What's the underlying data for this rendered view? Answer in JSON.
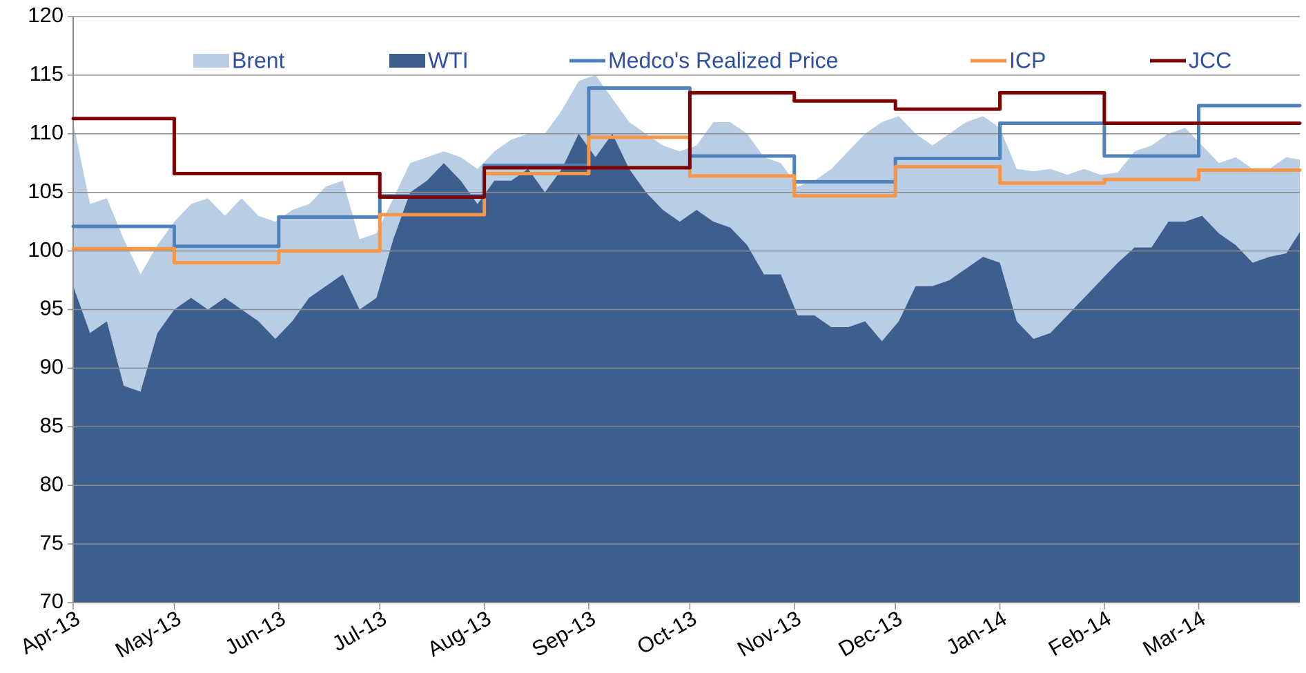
{
  "chart_data": {
    "type": "line",
    "xlim": [
      0,
      364
    ],
    "ylim": [
      70,
      120
    ],
    "yticks": [
      70,
      75,
      80,
      85,
      90,
      95,
      100,
      105,
      110,
      115,
      120
    ],
    "xticks": [
      {
        "value": 0,
        "label": "Apr-13"
      },
      {
        "value": 30,
        "label": "May-13"
      },
      {
        "value": 61,
        "label": "Jun-13"
      },
      {
        "value": 91,
        "label": "Jul-13"
      },
      {
        "value": 122,
        "label": "Aug-13"
      },
      {
        "value": 153,
        "label": "Sep-13"
      },
      {
        "value": 183,
        "label": "Oct-13"
      },
      {
        "value": 214,
        "label": "Nov-13"
      },
      {
        "value": 244,
        "label": "Dec-13"
      },
      {
        "value": 275,
        "label": "Jan-14"
      },
      {
        "value": 306,
        "label": "Feb-14"
      },
      {
        "value": 334,
        "label": "Mar-14"
      }
    ],
    "grid": true,
    "legend": "top",
    "series": [
      {
        "name": "Brent",
        "style": "area",
        "color": "#b9cde5",
        "x": [
          0,
          5,
          10,
          15,
          20,
          25,
          30,
          35,
          40,
          45,
          50,
          55,
          60,
          65,
          70,
          75,
          80,
          85,
          90,
          95,
          100,
          105,
          110,
          115,
          120,
          125,
          130,
          135,
          140,
          145,
          150,
          155,
          160,
          165,
          170,
          175,
          180,
          185,
          190,
          195,
          200,
          205,
          210,
          215,
          220,
          225,
          230,
          235,
          240,
          245,
          250,
          255,
          260,
          265,
          270,
          275,
          280,
          285,
          290,
          295,
          300,
          305,
          310,
          315,
          320,
          325,
          330,
          335,
          340,
          345,
          350,
          355,
          360,
          364
        ],
        "values": [
          111,
          104,
          104.5,
          101,
          98,
          100.5,
          102.5,
          104,
          104.5,
          103,
          104.5,
          103,
          102.5,
          103.5,
          104,
          105.5,
          106,
          101,
          101.5,
          104.5,
          107.5,
          108,
          108.5,
          108,
          107,
          108.5,
          109.5,
          110,
          110,
          112,
          114.5,
          115,
          113,
          111,
          110,
          109,
          108.5,
          109,
          111,
          111,
          110,
          108,
          107.5,
          105.5,
          106,
          107,
          108.5,
          110,
          111,
          111.5,
          110,
          109,
          110,
          111,
          111.5,
          110.5,
          107,
          106.8,
          107,
          106.5,
          107,
          106.5,
          106.7,
          108.5,
          109,
          110,
          110.5,
          109,
          107.5,
          108,
          107,
          107,
          108,
          107.8
        ]
      },
      {
        "name": "WTI",
        "style": "area",
        "color": "#3d5f8e",
        "x": [
          0,
          5,
          10,
          15,
          20,
          25,
          30,
          35,
          40,
          45,
          50,
          55,
          60,
          65,
          70,
          75,
          80,
          85,
          90,
          95,
          100,
          105,
          110,
          115,
          120,
          125,
          130,
          135,
          140,
          145,
          150,
          155,
          160,
          165,
          170,
          175,
          180,
          185,
          190,
          195,
          200,
          205,
          210,
          215,
          220,
          225,
          230,
          235,
          240,
          245,
          250,
          255,
          260,
          265,
          270,
          275,
          280,
          285,
          290,
          295,
          300,
          305,
          310,
          315,
          320,
          325,
          330,
          335,
          340,
          345,
          350,
          355,
          360,
          364
        ],
        "values": [
          97,
          93,
          94,
          88.5,
          88,
          93,
          95,
          96,
          95,
          96,
          95,
          94,
          92.5,
          94,
          96,
          97,
          98,
          95,
          96,
          101,
          105,
          106,
          107.5,
          106,
          104,
          106,
          106,
          107,
          105,
          107,
          110,
          108,
          110,
          107,
          105,
          103.5,
          102.5,
          103.5,
          102.5,
          102,
          100.5,
          98,
          98,
          94.5,
          94.5,
          93.5,
          93.5,
          94,
          92.3,
          94,
          97,
          97,
          97.5,
          98.5,
          99.5,
          99,
          94,
          92.5,
          93,
          94.5,
          96,
          97.5,
          99,
          100.3,
          100.3,
          102.5,
          102.5,
          103,
          101.5,
          100.5,
          99,
          99.5,
          99.8,
          101.6
        ]
      },
      {
        "name": "Medco's Realized Price",
        "style": "step",
        "color": "#4f81bd",
        "x": [
          0,
          30,
          61,
          91,
          122,
          153,
          183,
          214,
          244,
          275,
          306,
          334
        ],
        "values": [
          102.1,
          100.4,
          102.9,
          104.7,
          107.3,
          113.9,
          108.1,
          105.9,
          107.9,
          110.9,
          108.1,
          112.4
        ]
      },
      {
        "name": "ICP",
        "style": "step",
        "color": "#f79646",
        "x": [
          0,
          30,
          61,
          91,
          122,
          153,
          183,
          214,
          244,
          275,
          306,
          334
        ],
        "values": [
          100.2,
          99.0,
          100.0,
          103.1,
          106.6,
          109.7,
          106.4,
          104.7,
          107.2,
          105.8,
          106.1,
          106.9
        ]
      },
      {
        "name": "JCC",
        "style": "step",
        "color": "#7f0000",
        "x": [
          0,
          30,
          61,
          91,
          122,
          153,
          183,
          214,
          244,
          275,
          306,
          334
        ],
        "values": [
          111.3,
          106.6,
          106.6,
          104.6,
          107.1,
          107.1,
          113.5,
          112.8,
          112.1,
          113.5,
          110.9,
          110.9
        ]
      }
    ]
  }
}
